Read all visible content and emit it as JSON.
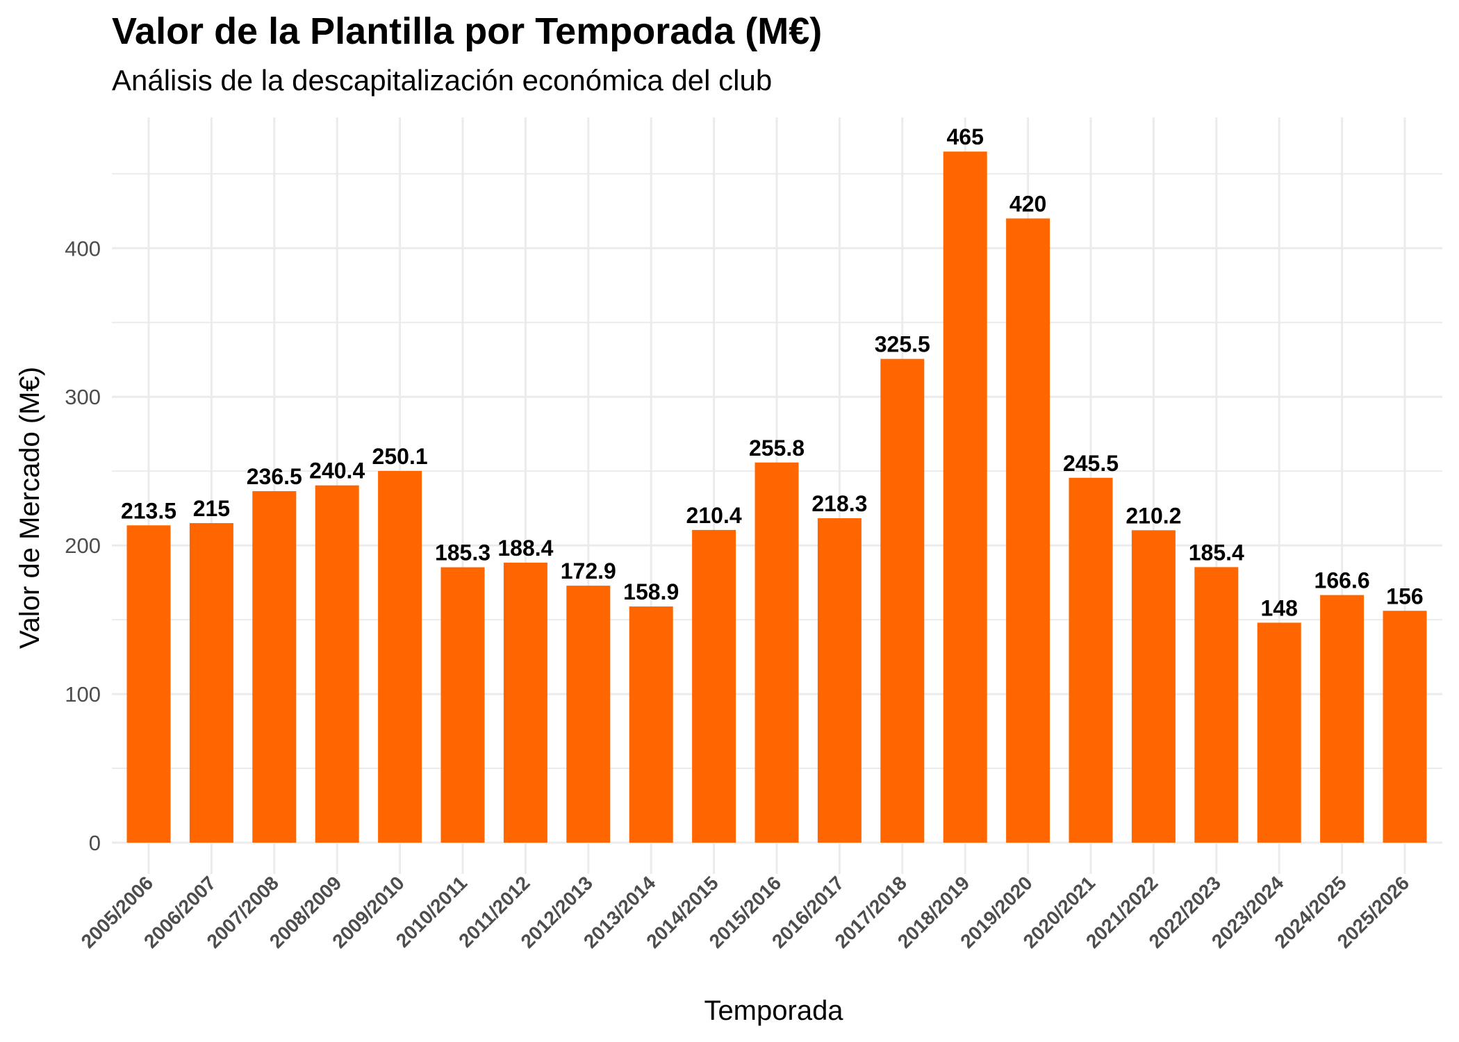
{
  "chart_data": {
    "type": "bar",
    "title": "Valor de la Plantilla por Temporada (M€)",
    "subtitle": "Análisis de la descapitalización económica del club",
    "xlabel": "Temporada",
    "ylabel": "Valor de Mercado (M€)",
    "categories": [
      "2005/2006",
      "2006/2007",
      "2007/2008",
      "2008/2009",
      "2009/2010",
      "2010/2011",
      "2011/2012",
      "2012/2013",
      "2013/2014",
      "2014/2015",
      "2015/2016",
      "2016/2017",
      "2017/2018",
      "2018/2019",
      "2019/2020",
      "2020/2021",
      "2021/2022",
      "2022/2023",
      "2023/2024",
      "2024/2025",
      "2025/2026"
    ],
    "values": [
      213.5,
      215,
      236.5,
      240.4,
      250.1,
      185.3,
      188.4,
      172.9,
      158.9,
      210.4,
      255.8,
      218.3,
      325.5,
      465,
      420,
      245.5,
      210.2,
      185.4,
      148,
      166.6,
      156
    ],
    "data_labels": [
      "213.5",
      "215",
      "236.5",
      "240.4",
      "250.1",
      "185.3",
      "188.4",
      "172.9",
      "158.9",
      "210.4",
      "255.8",
      "218.3",
      "325.5",
      "465",
      "420",
      "245.5",
      "210.2",
      "185.4",
      "148",
      "166.6",
      "156"
    ],
    "yticks": [
      0,
      100,
      200,
      300,
      400
    ],
    "ytick_labels": [
      "0",
      "100",
      "200",
      "300",
      "400"
    ],
    "ylim": [
      0,
      488
    ],
    "grid": true,
    "legend": "none",
    "colors": {
      "bar": "#FF6600",
      "grid": "#EBEBEB",
      "tick_text": "#4D4D4D"
    }
  }
}
